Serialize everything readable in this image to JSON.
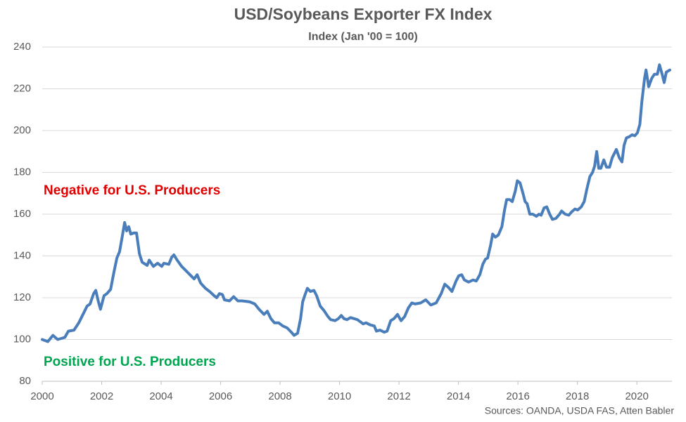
{
  "chart_data": {
    "type": "line",
    "title": "USD/Soybeans Exporter FX Index",
    "subtitle": "Index (Jan '00 = 100)",
    "annotations": [
      {
        "text": "Negative for U.S. Producers",
        "color": "#e00000"
      },
      {
        "text": "Positive for U.S. Producers",
        "color": "#00a550"
      }
    ],
    "source": "Sources: OANDA, USDA FAS, Atten Babler",
    "xlim": [
      2000,
      2021.18
    ],
    "xticks": [
      2000,
      2002,
      2004,
      2006,
      2008,
      2010,
      2012,
      2014,
      2016,
      2018,
      2020
    ],
    "ylim": [
      80,
      240
    ],
    "yticks": [
      80,
      100,
      120,
      140,
      160,
      180,
      200,
      220,
      240
    ],
    "grid": true,
    "series": [
      {
        "color": "#4a7ebb",
        "x": [
          2000.0,
          2000.19,
          2000.36,
          2000.52,
          2000.76,
          2000.88,
          2001.07,
          2001.23,
          2001.37,
          2001.51,
          2001.61,
          2001.73,
          2001.8,
          2001.89,
          2001.96,
          2002.08,
          2002.18,
          2002.3,
          2002.41,
          2002.51,
          2002.6,
          2002.7,
          2002.77,
          2002.84,
          2002.91,
          2002.98,
          2003.08,
          2003.17,
          2003.27,
          2003.36,
          2003.53,
          2003.6,
          2003.74,
          2003.88,
          2004.02,
          2004.09,
          2004.26,
          2004.36,
          2004.43,
          2004.54,
          2004.69,
          2004.83,
          2004.97,
          2005.11,
          2005.21,
          2005.33,
          2005.49,
          2005.63,
          2005.78,
          2005.87,
          2005.96,
          2006.06,
          2006.13,
          2006.3,
          2006.44,
          2006.58,
          2006.72,
          2006.98,
          2007.15,
          2007.29,
          2007.46,
          2007.57,
          2007.69,
          2007.81,
          2007.95,
          2008.09,
          2008.24,
          2008.38,
          2008.47,
          2008.59,
          2008.69,
          2008.76,
          2008.83,
          2008.92,
          2009.02,
          2009.14,
          2009.23,
          2009.35,
          2009.47,
          2009.61,
          2009.7,
          2009.85,
          2009.96,
          2010.06,
          2010.15,
          2010.25,
          2010.37,
          2010.49,
          2010.6,
          2010.7,
          2010.79,
          2010.89,
          2011.03,
          2011.17,
          2011.24,
          2011.36,
          2011.5,
          2011.6,
          2011.72,
          2011.83,
          2011.95,
          2012.07,
          2012.19,
          2012.31,
          2012.43,
          2012.54,
          2012.73,
          2012.9,
          2013.07,
          2013.25,
          2013.42,
          2013.54,
          2013.66,
          2013.78,
          2013.92,
          2014.01,
          2014.11,
          2014.2,
          2014.34,
          2014.49,
          2014.6,
          2014.72,
          2014.82,
          2014.91,
          2014.98,
          2015.08,
          2015.15,
          2015.24,
          2015.34,
          2015.46,
          2015.55,
          2015.62,
          2015.72,
          2015.81,
          2015.91,
          2015.98,
          2016.07,
          2016.17,
          2016.24,
          2016.31,
          2016.4,
          2016.5,
          2016.62,
          2016.71,
          2016.78,
          2016.88,
          2016.97,
          2017.07,
          2017.16,
          2017.28,
          2017.4,
          2017.47,
          2017.59,
          2017.71,
          2017.8,
          2017.92,
          2018.01,
          2018.13,
          2018.23,
          2018.32,
          2018.42,
          2018.51,
          2018.58,
          2018.65,
          2018.72,
          2018.79,
          2018.89,
          2018.98,
          2019.08,
          2019.17,
          2019.31,
          2019.41,
          2019.5,
          2019.57,
          2019.65,
          2019.74,
          2019.84,
          2019.93,
          2020.02,
          2020.1,
          2020.17,
          2020.26,
          2020.31,
          2020.4,
          2020.5,
          2020.59,
          2020.69,
          2020.76,
          2020.85,
          2020.92,
          2020.99,
          2021.11
        ],
        "values": [
          100,
          99,
          102,
          100,
          101,
          104,
          104.5,
          108,
          112,
          116,
          117,
          122,
          123.5,
          118,
          114.5,
          121,
          122,
          124,
          132,
          139,
          142,
          150,
          156,
          152,
          154,
          150.5,
          151,
          151,
          141,
          137,
          135.5,
          138,
          135,
          136.5,
          135,
          136.5,
          136,
          139.5,
          140.5,
          138,
          135,
          133,
          131,
          129,
          131,
          127,
          124.5,
          123,
          121,
          120,
          122,
          121.5,
          119,
          118.5,
          120.5,
          118.5,
          118.5,
          118,
          117,
          114.5,
          112,
          113.5,
          110,
          108,
          108,
          106.5,
          105.5,
          103.5,
          102,
          103,
          110,
          118,
          121,
          124.5,
          123,
          123.5,
          121,
          116,
          114,
          111,
          109.5,
          109,
          110,
          111.5,
          110,
          109.5,
          110.5,
          110,
          109.5,
          108.5,
          107.5,
          108,
          107,
          106.5,
          104,
          104.5,
          103.5,
          104,
          109,
          110,
          112,
          109,
          111,
          115,
          117.5,
          117,
          117.5,
          119,
          116.5,
          117.5,
          122,
          126.5,
          125,
          123,
          128,
          130.5,
          131,
          128.5,
          127.5,
          128.5,
          128,
          131,
          136,
          138.5,
          139,
          145,
          150.5,
          149,
          150,
          154,
          162,
          167,
          167,
          166,
          171,
          176,
          175,
          170,
          166,
          165,
          160,
          160,
          159,
          160,
          159.5,
          163,
          163.5,
          160,
          157.5,
          158,
          160,
          161.5,
          160,
          159.5,
          161,
          162.5,
          162,
          163.5,
          166,
          172,
          178,
          180,
          183,
          190,
          182,
          182,
          186,
          182.5,
          182.5,
          187,
          191,
          187,
          185,
          193,
          196.5,
          197,
          198,
          197.5,
          199,
          203,
          214,
          225,
          229,
          221,
          225,
          227,
          227,
          231.5,
          227,
          223,
          228,
          229
        ]
      }
    ]
  }
}
